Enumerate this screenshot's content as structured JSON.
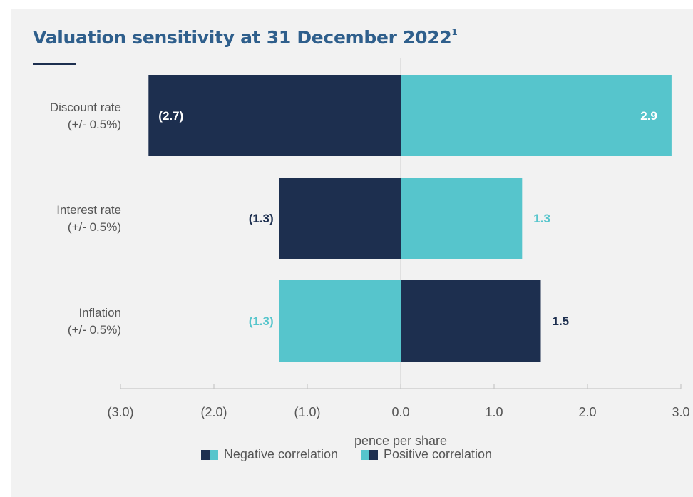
{
  "title": "Valuation sensitivity at 31 December 2022",
  "title_superscript": "1",
  "colors": {
    "navy": "#1d2f4f",
    "teal": "#56c5cc",
    "text": "#555555",
    "title": "#2f5f8c"
  },
  "chart_data": {
    "type": "bar",
    "orientation": "horizontal",
    "categories": [
      {
        "name": "Discount rate",
        "sub": "(+/- 0.5%)"
      },
      {
        "name": "Interest rate",
        "sub": "(+/- 0.5%)"
      },
      {
        "name": "Inflation",
        "sub": "(+/- 0.5%)"
      }
    ],
    "series": [
      {
        "values": [
          -2.7,
          -1.3,
          -1.3
        ],
        "labels": [
          "(2.7)",
          "(1.3)",
          "(1.3)"
        ],
        "colors": [
          "navy",
          "navy",
          "teal"
        ]
      },
      {
        "values": [
          2.9,
          1.3,
          1.5
        ],
        "labels": [
          "2.9",
          "1.3",
          "1.5"
        ],
        "colors": [
          "teal",
          "teal",
          "navy"
        ]
      }
    ],
    "xlim": [
      -3.0,
      3.0
    ],
    "ticks": [
      -3,
      -2,
      -1,
      0,
      1,
      2,
      3
    ],
    "tick_labels": [
      "(3.0)",
      "(2.0)",
      "(1.0)",
      "0.0",
      "1.0",
      "2.0",
      "3.0"
    ],
    "xlabel": "pence per share",
    "legend": [
      "Negative correlation",
      "Positive correlation"
    ],
    "legend_position": "bottom"
  }
}
